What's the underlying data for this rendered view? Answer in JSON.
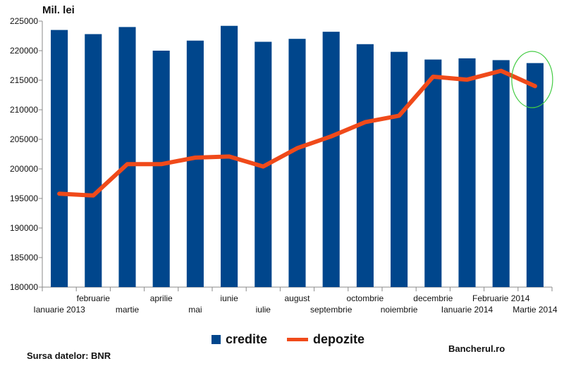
{
  "chart_data": {
    "type": "bar",
    "unit_label": "Mil. lei",
    "categories": [
      "Ianuarie 2013",
      "februarie",
      "martie",
      "aprilie",
      "mai",
      "iunie",
      "iulie",
      "august",
      "septembrie",
      "octombrie",
      "noiembrie",
      "decembrie",
      "Ianuarie 2014",
      "Februarie 2014",
      "Martie 2014"
    ],
    "series": [
      {
        "name": "credite",
        "type": "bar",
        "color": "#00468c",
        "values": [
          223500,
          222800,
          224000,
          220000,
          221700,
          224200,
          221500,
          222000,
          223200,
          221100,
          219800,
          218500,
          218700,
          218400,
          217900
        ]
      },
      {
        "name": "depozite",
        "type": "line",
        "color": "#f04a1a",
        "values": [
          195800,
          195500,
          200800,
          200800,
          201900,
          202100,
          200400,
          203500,
          205500,
          207900,
          209000,
          215600,
          215100,
          216600,
          214000
        ]
      }
    ],
    "ylim": [
      180000,
      225000
    ],
    "yticks": [
      180000,
      185000,
      190000,
      195000,
      200000,
      205000,
      210000,
      215000,
      220000,
      225000
    ],
    "grid": false,
    "legend": "bottom-center",
    "highlight": {
      "category_index": 14,
      "shape": "ellipse",
      "color": "#44cc44"
    }
  },
  "footer": {
    "source": "Sursa datelor: BNR",
    "credit": "Bancherul.ro"
  }
}
